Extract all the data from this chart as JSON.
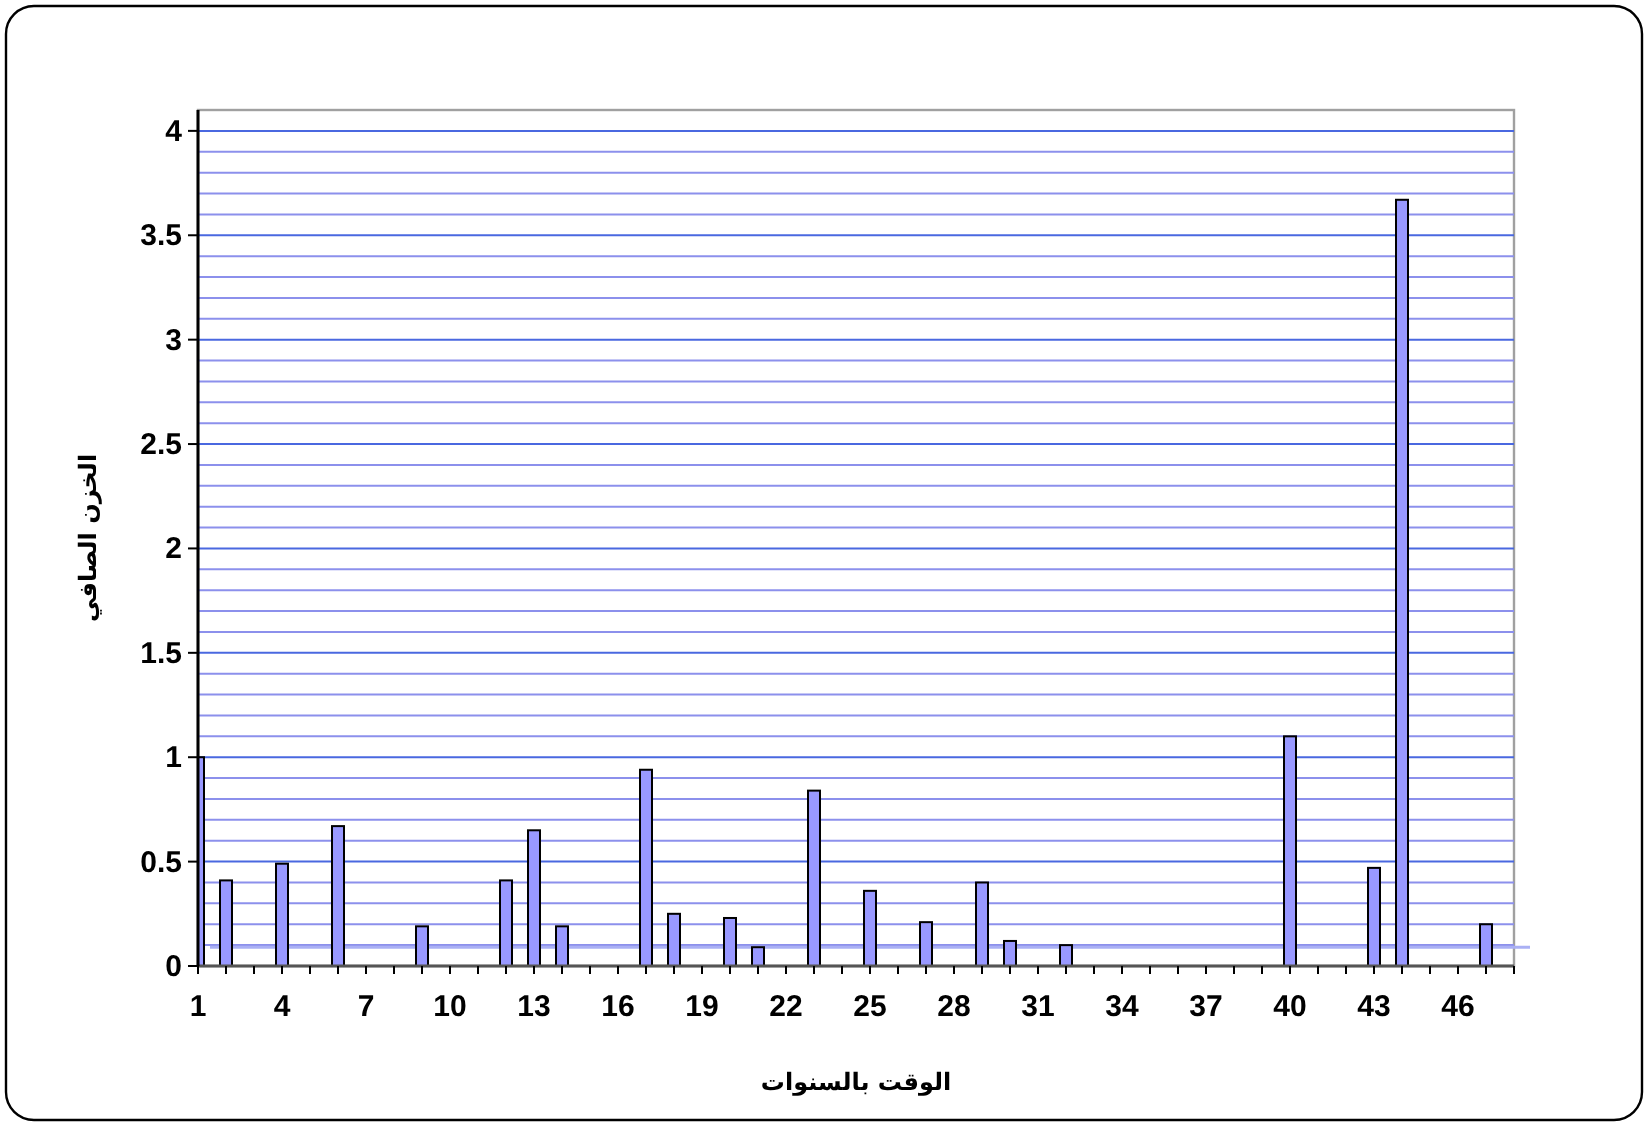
{
  "chart_data": {
    "type": "bar",
    "xlabel": "الوقت بالسنوات",
    "ylabel": "الخزن الصافي",
    "categories": [
      "1",
      null,
      null,
      "4",
      null,
      null,
      "7",
      null,
      null,
      "10",
      null,
      null,
      "13",
      null,
      null,
      "16",
      null,
      null,
      "19",
      null,
      null,
      "22",
      null,
      null,
      "25",
      null,
      null,
      "28",
      null,
      null,
      "31",
      null,
      null,
      "34",
      null,
      null,
      "37",
      null,
      null,
      "40",
      null,
      null,
      "43",
      null,
      null,
      "46",
      null,
      null
    ],
    "values": [
      1.0,
      0.41,
      null,
      0.49,
      null,
      0.67,
      null,
      null,
      0.19,
      null,
      null,
      0.41,
      0.65,
      0.19,
      null,
      null,
      0.94,
      0.25,
      null,
      0.23,
      0.09,
      null,
      0.84,
      null,
      0.36,
      null,
      0.21,
      null,
      0.4,
      0.12,
      null,
      0.1,
      null,
      null,
      null,
      null,
      null,
      null,
      null,
      1.1,
      null,
      null,
      0.47,
      3.67,
      null,
      null,
      0.2,
      null
    ],
    "color": "#9999ff",
    "ylim": [
      0,
      4.1
    ],
    "yticks": [
      0,
      {
        "value": 0.1,
        "label": null
      },
      {
        "value": 0.2,
        "label": null
      },
      {
        "value": 0.3,
        "label": null
      },
      {
        "value": 0.4,
        "label": null
      },
      0.5,
      {
        "value": 0.6,
        "label": null
      },
      {
        "value": 0.7,
        "label": null
      },
      {
        "value": 0.8,
        "label": null
      },
      {
        "value": 0.9,
        "label": null
      },
      1,
      {
        "value": 1.1,
        "label": null
      },
      {
        "value": 1.2,
        "label": null
      },
      {
        "value": 1.3,
        "label": null
      },
      {
        "value": 1.4,
        "label": null
      },
      1.5,
      {
        "value": 1.6,
        "label": null
      },
      {
        "value": 1.7,
        "label": null
      },
      {
        "value": 1.8,
        "label": null
      },
      {
        "value": 1.9,
        "label": null
      },
      2,
      {
        "value": 2.1,
        "label": null
      },
      {
        "value": 2.2,
        "label": null
      },
      {
        "value": 2.3,
        "label": null
      },
      {
        "value": 2.4,
        "label": null
      },
      2.5,
      {
        "value": 2.6,
        "label": null
      },
      {
        "value": 2.7,
        "label": null
      },
      {
        "value": 2.8,
        "label": null
      },
      {
        "value": 2.9,
        "label": null
      },
      3,
      {
        "value": 3.1,
        "label": null
      },
      {
        "value": 3.2,
        "label": null
      },
      {
        "value": 3.3,
        "label": null
      },
      {
        "value": 3.4,
        "label": null
      },
      3.5,
      {
        "value": 3.6,
        "label": null
      },
      {
        "value": 3.7,
        "label": null
      },
      {
        "value": 3.8,
        "label": null
      },
      {
        "value": 3.9,
        "label": null
      },
      4
    ],
    "grid": "y",
    "ref_lines": [
      {
        "axis": "y",
        "value": 0.09,
        "color": "#aab0f4"
      }
    ]
  }
}
